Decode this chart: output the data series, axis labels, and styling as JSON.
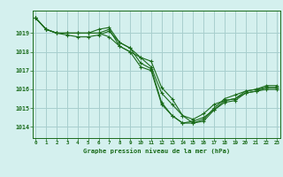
{
  "title": "Graphe pression niveau de la mer (hPa)",
  "background_color": "#d4f0ee",
  "grid_color": "#a8cece",
  "line_color": "#1a6b1a",
  "xlim": [
    -0.3,
    23.3
  ],
  "ylim": [
    1013.4,
    1020.2
  ],
  "yticks": [
    1014,
    1015,
    1016,
    1017,
    1018,
    1019
  ],
  "xticks": [
    0,
    1,
    2,
    3,
    4,
    5,
    6,
    7,
    8,
    9,
    10,
    11,
    12,
    13,
    14,
    15,
    16,
    17,
    18,
    19,
    20,
    21,
    22,
    23
  ],
  "series": [
    [
      1019.8,
      1019.2,
      1019.0,
      1019.0,
      1019.0,
      1019.0,
      1019.0,
      1019.2,
      1018.3,
      1018.0,
      1017.2,
      1017.0,
      1015.2,
      1014.6,
      1014.2,
      1014.2,
      1014.3,
      1014.9,
      1015.3,
      1015.4,
      1015.8,
      1015.9,
      1016.0,
      1016.0
    ],
    [
      1019.8,
      1019.2,
      1019.0,
      1019.0,
      1019.0,
      1019.0,
      1019.0,
      1018.8,
      1018.3,
      1018.0,
      1017.7,
      1017.2,
      1015.8,
      1015.2,
      1014.6,
      1014.2,
      1014.4,
      1015.0,
      1015.5,
      1015.7,
      1015.9,
      1016.0,
      1016.1,
      1016.1
    ],
    [
      1019.8,
      1019.2,
      1019.0,
      1019.0,
      1019.0,
      1019.0,
      1019.2,
      1019.3,
      1018.5,
      1018.2,
      1017.4,
      1017.1,
      1015.3,
      1014.6,
      1014.2,
      1014.3,
      1014.5,
      1014.9,
      1015.4,
      1015.5,
      1015.8,
      1015.9,
      1016.1,
      1016.1
    ],
    [
      1019.8,
      1019.2,
      1019.0,
      1018.9,
      1018.8,
      1018.8,
      1018.9,
      1019.1,
      1018.5,
      1018.2,
      1017.7,
      1017.5,
      1016.1,
      1015.5,
      1014.6,
      1014.4,
      1014.7,
      1015.2,
      1015.4,
      1015.5,
      1015.9,
      1016.0,
      1016.2,
      1016.2
    ]
  ]
}
